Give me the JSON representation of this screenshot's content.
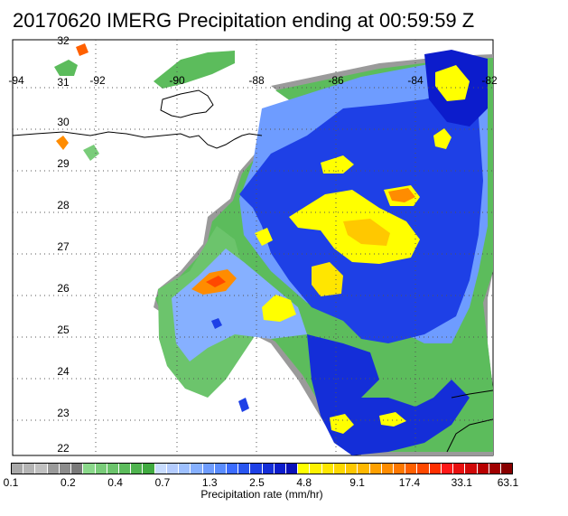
{
  "title": "20170620 IMERG Precipitation ending at 00:59:59 Z",
  "lon_labels": [
    "-94",
    "-92",
    "-90",
    "-88",
    "-86",
    "-84",
    "-82"
  ],
  "lat_labels": [
    "32",
    "31",
    "30",
    "29",
    "28",
    "27",
    "26",
    "25",
    "24",
    "23",
    "22"
  ],
  "colorbar": {
    "label": "Precipitation rate (mm/hr)",
    "ticks": [
      "0.1",
      "0.2",
      "0.4",
      "0.7",
      "1.3",
      "2.5",
      "4.8",
      "9.1",
      "17.4",
      "33.1",
      "63.1"
    ],
    "colors": [
      "#a8a8a8",
      "#b4b4b4",
      "#c0c0c0",
      "#9a9a9a",
      "#8c8c8c",
      "#7a7a7a",
      "#8ad88a",
      "#79cc79",
      "#6cc46c",
      "#5cbc5c",
      "#4fb34f",
      "#40aa40",
      "#c8dcff",
      "#b4ccff",
      "#9ec0ff",
      "#86b0ff",
      "#6e9cff",
      "#5a8cff",
      "#3c6cff",
      "#2a56f0",
      "#1e40e6",
      "#142ed8",
      "#0c1ccc",
      "#0a10b8",
      "#ffff00",
      "#fff200",
      "#ffe600",
      "#ffd800",
      "#ffc800",
      "#ffb800",
      "#ffa000",
      "#ff8c00",
      "#ff7800",
      "#ff6000",
      "#ff4800",
      "#ff3000",
      "#ff1818",
      "#e81010",
      "#d00808",
      "#b80000",
      "#a00000",
      "#880000"
    ]
  }
}
